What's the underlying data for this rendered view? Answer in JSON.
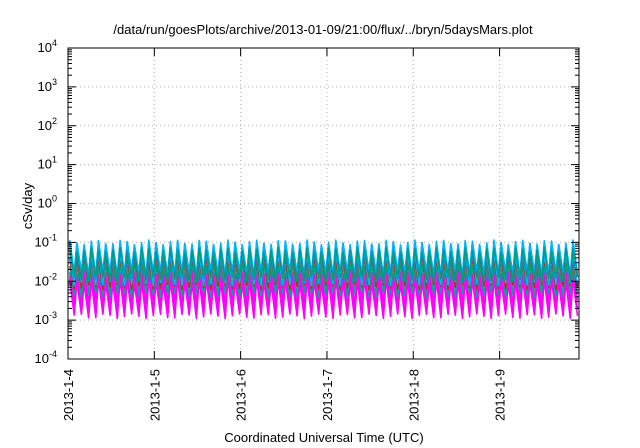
{
  "chart_data": {
    "type": "line",
    "title": "/data/run/goesPlots/archive/2013-01-09/21:00/flux/../bryn/5daysMars.plot",
    "xlabel": "Coordinated Universal Time (UTC)",
    "ylabel": "cSv/day",
    "y_scale": "log",
    "ylim_exponents": [
      -4,
      4
    ],
    "y_tick_exponents": [
      -4,
      -3,
      -2,
      -1,
      0,
      1,
      2,
      3,
      4
    ],
    "y_tick_base": "10",
    "x_tick_labels": [
      "2013-1-4",
      "2013-1-5",
      "2013-1-6",
      "2013-1-7",
      "2013-1-8",
      "2013-1-9"
    ],
    "xlim_days": [
      0,
      5.92
    ],
    "grid": true,
    "legend": "none",
    "wave": {
      "period_days": 0.0833,
      "phase_days": 0.02,
      "bands_log10": [
        {
          "color": "#ff00ff",
          "peak": -2.0,
          "trough": -2.9
        },
        {
          "color": "#ff00ff",
          "peak": -1.9,
          "trough": -2.75
        },
        {
          "color": "#ff00ff",
          "peak": -1.75,
          "trough": -2.55
        },
        {
          "color": "#00aa88",
          "peak": -1.55,
          "trough": -2.35
        },
        {
          "color": "#cc2222",
          "peak": -1.35,
          "trough": -2.15
        },
        {
          "color": "#00b4ff",
          "peak": -1.25,
          "trough": -2.05
        },
        {
          "color": "#1f4fff",
          "peak": -1.05,
          "trough": -1.85
        },
        {
          "color": "#00b4ff",
          "peak": -1.0,
          "trough": -1.8
        },
        {
          "color": "#009a8a",
          "peak": -1.2,
          "trough": -1.95
        }
      ]
    }
  }
}
